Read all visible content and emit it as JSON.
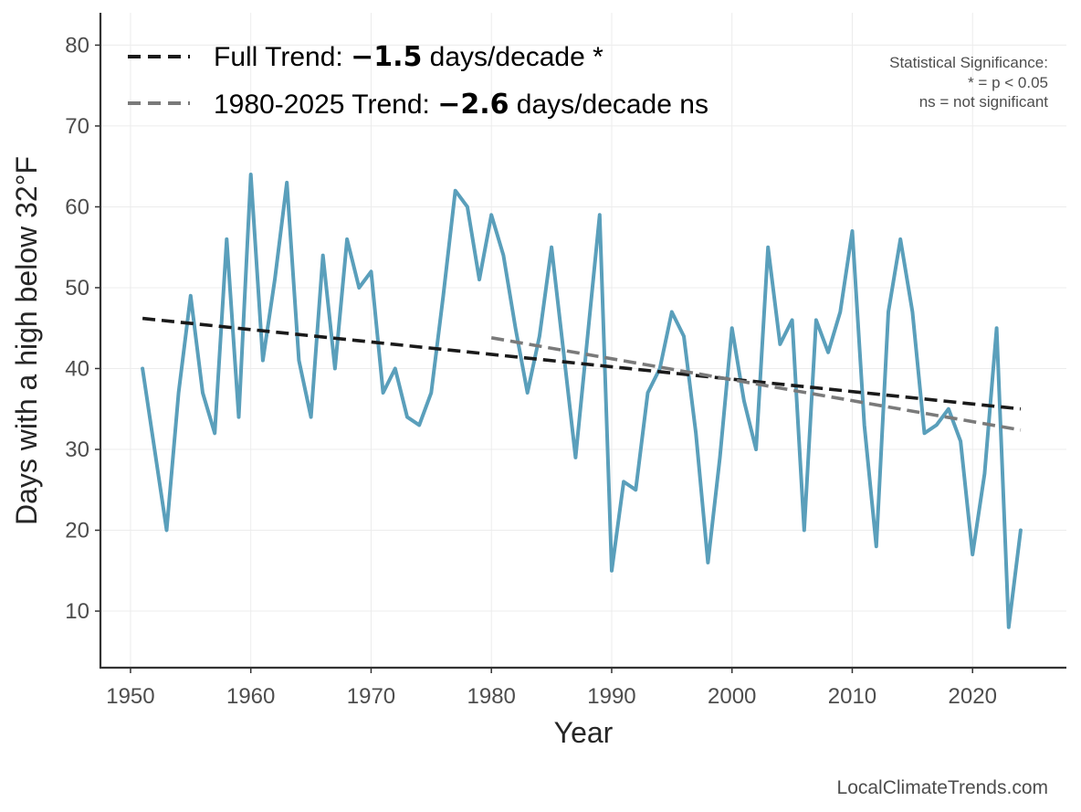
{
  "chart_data": {
    "type": "line",
    "xlabel": "Year",
    "ylabel": "Days with a high below 32°F",
    "xlim": [
      1947.5,
      2027.8
    ],
    "ylim": [
      3,
      84
    ],
    "xticks": [
      1950,
      1960,
      1970,
      1980,
      1990,
      2000,
      2010,
      2020
    ],
    "yticks": [
      10,
      20,
      30,
      40,
      50,
      60,
      70,
      80
    ],
    "grid": true,
    "legend_position": "top-left",
    "series": [
      {
        "kind": "observed",
        "color": "#5a9fbb",
        "x": [
          1951,
          1952,
          1953,
          1954,
          1955,
          1956,
          1957,
          1958,
          1959,
          1960,
          1961,
          1962,
          1963,
          1964,
          1965,
          1966,
          1967,
          1968,
          1969,
          1970,
          1971,
          1972,
          1973,
          1974,
          1975,
          1976,
          1977,
          1978,
          1979,
          1980,
          1981,
          1982,
          1983,
          1984,
          1985,
          1986,
          1987,
          1988,
          1989,
          1990,
          1991,
          1992,
          1993,
          1994,
          1995,
          1996,
          1997,
          1998,
          1999,
          2000,
          2001,
          2002,
          2003,
          2004,
          2005,
          2006,
          2007,
          2008,
          2009,
          2010,
          2011,
          2012,
          2013,
          2014,
          2015,
          2016,
          2017,
          2018,
          2019,
          2020,
          2021,
          2022,
          2023,
          2024
        ],
        "y": [
          40,
          30,
          20,
          37,
          49,
          37,
          32,
          56,
          34,
          64,
          41,
          51,
          63,
          41,
          34,
          54,
          40,
          56,
          50,
          52,
          37,
          40,
          34,
          33,
          37,
          49,
          62,
          60,
          51,
          59,
          54,
          45,
          37,
          44,
          55,
          42,
          29,
          44,
          59,
          15,
          26,
          25,
          37,
          40,
          47,
          44,
          32,
          16,
          29,
          45,
          36,
          30,
          55,
          43,
          46,
          20,
          46,
          42,
          47,
          57,
          33,
          18,
          47,
          56,
          47,
          32,
          33,
          35,
          31,
          17,
          27,
          45,
          8,
          20
        ]
      },
      {
        "name": "Full Trend",
        "kind": "trend",
        "color": "#1a1a1a",
        "x": [
          1951,
          2024
        ],
        "y": [
          46.2,
          35.0
        ]
      },
      {
        "name": "1980-2025 Trend",
        "kind": "trend",
        "color": "#7a7a7a",
        "x": [
          1980,
          2024
        ],
        "y": [
          43.8,
          32.4
        ]
      }
    ],
    "legend": [
      {
        "prefix": "Full Trend: ",
        "value": "−1.5",
        "suffix": " days/decade *",
        "color": "#1a1a1a"
      },
      {
        "prefix": "1980-2025 Trend: ",
        "value": "−2.6",
        "suffix": " days/decade ns",
        "color": "#7a7a7a"
      }
    ],
    "annotation": [
      "Statistical Significance:",
      "* = p < 0.05",
      "ns = not significant"
    ],
    "credit": "LocalClimateTrends.com"
  }
}
